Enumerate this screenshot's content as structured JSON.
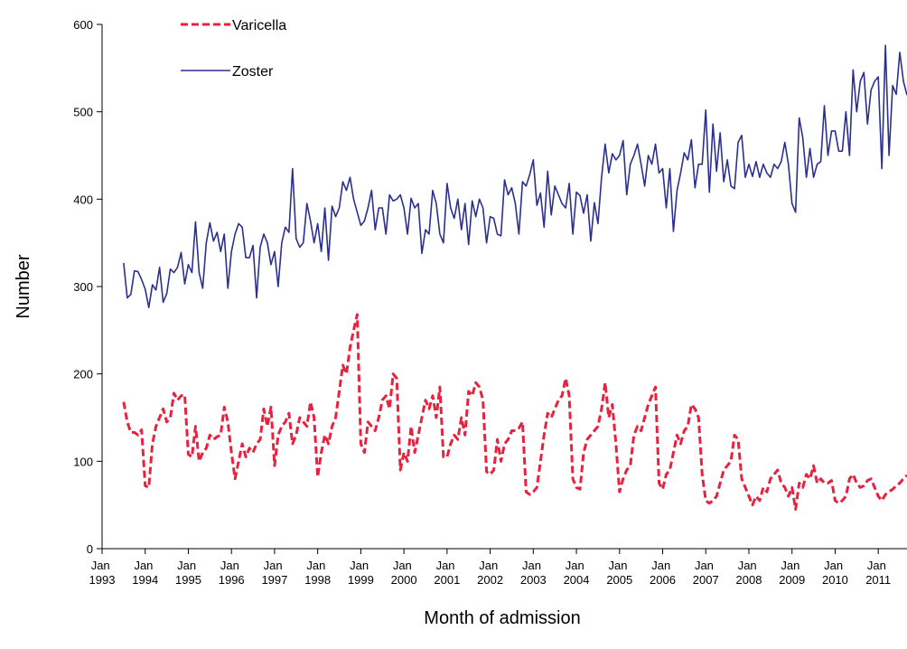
{
  "chart_data": {
    "type": "line",
    "xlabel": "Month of admission",
    "ylabel": "Number",
    "legend": "upper left",
    "x": [
      "1993-07",
      "1993-08",
      "1993-09",
      "1993-10",
      "1993-11",
      "1993-12",
      "1994-01",
      "1994-02",
      "1994-03",
      "1994-04",
      "1994-05",
      "1994-06",
      "1994-07",
      "1994-08",
      "1994-09",
      "1994-10",
      "1994-11",
      "1994-12",
      "1995-01",
      "1995-02",
      "1995-03",
      "1995-04",
      "1995-05",
      "1995-06",
      "1995-07",
      "1995-08",
      "1995-09",
      "1995-10",
      "1995-11",
      "1995-12",
      "1996-01",
      "1996-02",
      "1996-03",
      "1996-04",
      "1996-05",
      "1996-06",
      "1996-07",
      "1996-08",
      "1996-09",
      "1996-10",
      "1996-11",
      "1996-12",
      "1997-01",
      "1997-02",
      "1997-03",
      "1997-04",
      "1997-05",
      "1997-06",
      "1997-07",
      "1997-08",
      "1997-09",
      "1997-10",
      "1997-11",
      "1997-12",
      "1998-01",
      "1998-02",
      "1998-03",
      "1998-04",
      "1998-05",
      "1998-06",
      "1998-07",
      "1998-08",
      "1998-09",
      "1998-10",
      "1998-11",
      "1998-12",
      "1999-01",
      "1999-02",
      "1999-03",
      "1999-04",
      "1999-05",
      "1999-06",
      "1999-07",
      "1999-08",
      "1999-09",
      "1999-10",
      "1999-11",
      "1999-12",
      "2000-01",
      "2000-02",
      "2000-03",
      "2000-04",
      "2000-05",
      "2000-06",
      "2000-07",
      "2000-08",
      "2000-09",
      "2000-10",
      "2000-11",
      "2000-12",
      "2001-01",
      "2001-02",
      "2001-03",
      "2001-04",
      "2001-05",
      "2001-06",
      "2001-07",
      "2001-08",
      "2001-09",
      "2001-10",
      "2001-11",
      "2001-12",
      "2002-01",
      "2002-02",
      "2002-03",
      "2002-04",
      "2002-05",
      "2002-06",
      "2002-07",
      "2002-08",
      "2002-09",
      "2002-10",
      "2002-11",
      "2002-12",
      "2003-01",
      "2003-02",
      "2003-03",
      "2003-04",
      "2003-05",
      "2003-06",
      "2003-07",
      "2003-08",
      "2003-09",
      "2003-10",
      "2003-11",
      "2003-12",
      "2004-01",
      "2004-02",
      "2004-03",
      "2004-04",
      "2004-05",
      "2004-06",
      "2004-07",
      "2004-08",
      "2004-09",
      "2004-10",
      "2004-11",
      "2004-12",
      "2005-01",
      "2005-02",
      "2005-03",
      "2005-04",
      "2005-05",
      "2005-06",
      "2005-07",
      "2005-08",
      "2005-09",
      "2005-10",
      "2005-11",
      "2005-12",
      "2006-01",
      "2006-02",
      "2006-03",
      "2006-04",
      "2006-05",
      "2006-06",
      "2006-07",
      "2006-08",
      "2006-09",
      "2006-10",
      "2006-11",
      "2006-12",
      "2007-01",
      "2007-02",
      "2007-03",
      "2007-04",
      "2007-05",
      "2007-06",
      "2007-07",
      "2007-08",
      "2007-09",
      "2007-10",
      "2007-11",
      "2007-12",
      "2008-01",
      "2008-02",
      "2008-03",
      "2008-04",
      "2008-05",
      "2008-06",
      "2008-07",
      "2008-08",
      "2008-09",
      "2008-10",
      "2008-11",
      "2008-12",
      "2009-01",
      "2009-02",
      "2009-03",
      "2009-04",
      "2009-05",
      "2009-06",
      "2009-07",
      "2009-08",
      "2009-09",
      "2009-10",
      "2009-11",
      "2009-12",
      "2010-01",
      "2010-02",
      "2010-03",
      "2010-04",
      "2010-05",
      "2010-06",
      "2010-07",
      "2010-08",
      "2010-09",
      "2010-10",
      "2010-11",
      "2010-12",
      "2011-01",
      "2011-02",
      "2011-03",
      "2011-04",
      "2011-05",
      "2011-06",
      "2011-07",
      "2011-08",
      "2011-09"
    ],
    "xlim": [
      "1993-01",
      "2011-09"
    ],
    "xticks": [
      {
        "value": "1993-01",
        "label": "Jan 1993"
      },
      {
        "value": "1994-01",
        "label": "Jan 1994"
      },
      {
        "value": "1995-01",
        "label": "Jan 1995"
      },
      {
        "value": "1996-01",
        "label": "Jan 1996"
      },
      {
        "value": "1997-01",
        "label": "Jan 1997"
      },
      {
        "value": "1998-01",
        "label": "Jan 1998"
      },
      {
        "value": "1999-01",
        "label": "Jan 1999"
      },
      {
        "value": "2000-01",
        "label": "Jan 2000"
      },
      {
        "value": "2001-01",
        "label": "Jan 2001"
      },
      {
        "value": "2002-01",
        "label": "Jan 2002"
      },
      {
        "value": "2003-01",
        "label": "Jan 2003"
      },
      {
        "value": "2004-01",
        "label": "Jan 2004"
      },
      {
        "value": "2005-01",
        "label": "Jan 2005"
      },
      {
        "value": "2006-01",
        "label": "Jan 2006"
      },
      {
        "value": "2007-01",
        "label": "Jan 2007"
      },
      {
        "value": "2008-01",
        "label": "Jan 2008"
      },
      {
        "value": "2009-01",
        "label": "Jan 2009"
      },
      {
        "value": "2010-01",
        "label": "Jan 2010"
      },
      {
        "value": "2011-01",
        "label": "Jan 2011"
      }
    ],
    "ylim": [
      0,
      600
    ],
    "yticks": [
      0,
      100,
      200,
      300,
      400,
      500,
      600
    ],
    "series": [
      {
        "name": "Varicella",
        "color": "#e8213f",
        "dashed": true,
        "values": [
          168,
          145,
          133,
          133,
          130,
          136,
          72,
          70,
          120,
          140,
          150,
          160,
          145,
          150,
          178,
          170,
          175,
          176,
          108,
          105,
          140,
          100,
          110,
          115,
          130,
          125,
          128,
          130,
          162,
          145,
          110,
          80,
          100,
          120,
          105,
          115,
          110,
          120,
          125,
          160,
          140,
          162,
          95,
          130,
          140,
          145,
          155,
          120,
          130,
          150,
          145,
          140,
          168,
          150,
          82,
          110,
          130,
          120,
          140,
          150,
          180,
          210,
          200,
          230,
          250,
          268,
          120,
          110,
          145,
          140,
          135,
          150,
          170,
          175,
          160,
          200,
          195,
          90,
          110,
          100,
          140,
          110,
          130,
          150,
          170,
          160,
          175,
          150,
          185,
          105,
          105,
          120,
          130,
          125,
          150,
          130,
          180,
          175,
          190,
          185,
          170,
          88,
          85,
          90,
          125,
          100,
          120,
          125,
          135,
          135,
          138,
          145,
          65,
          62,
          65,
          70,
          100,
          130,
          155,
          150,
          160,
          170,
          175,
          195,
          175,
          80,
          70,
          68,
          110,
          125,
          130,
          135,
          140,
          160,
          190,
          150,
          165,
          120,
          65,
          80,
          90,
          95,
          130,
          140,
          135,
          150,
          165,
          175,
          185,
          75,
          68,
          85,
          90,
          110,
          130,
          120,
          135,
          140,
          165,
          160,
          150,
          85,
          55,
          52,
          55,
          60,
          75,
          90,
          95,
          100,
          130,
          125,
          80,
          70,
          60,
          50,
          60,
          55,
          70,
          65,
          80,
          85,
          90,
          75,
          70,
          60,
          70,
          45,
          75,
          70,
          85,
          80,
          95,
          75,
          80,
          75,
          75,
          78,
          55,
          52,
          55,
          60,
          80,
          85,
          75,
          70,
          72,
          78,
          80,
          70,
          60,
          55,
          62,
          65,
          68,
          72,
          75,
          80,
          84
        ]
      },
      {
        "name": "Zoster",
        "color": "#2b2f8f",
        "dashed": false,
        "values": [
          327,
          287,
          291,
          318,
          317,
          308,
          297,
          276,
          302,
          296,
          322,
          282,
          292,
          320,
          316,
          322,
          339,
          303,
          325,
          316,
          374,
          316,
          298,
          350,
          373,
          352,
          362,
          340,
          360,
          298,
          340,
          360,
          372,
          368,
          333,
          333,
          347,
          287,
          345,
          360,
          350,
          325,
          340,
          300,
          350,
          368,
          362,
          435,
          355,
          345,
          350,
          395,
          375,
          350,
          372,
          340,
          390,
          330,
          392,
          380,
          390,
          420,
          410,
          425,
          400,
          385,
          370,
          375,
          390,
          410,
          365,
          390,
          390,
          360,
          405,
          398,
          400,
          405,
          390,
          360,
          401,
          390,
          395,
          338,
          365,
          360,
          410,
          395,
          360,
          350,
          418,
          390,
          378,
          400,
          365,
          395,
          348,
          398,
          380,
          400,
          390,
          350,
          380,
          378,
          360,
          358,
          422,
          405,
          413,
          395,
          360,
          420,
          415,
          428,
          445,
          393,
          407,
          368,
          432,
          382,
          415,
          405,
          395,
          390,
          418,
          360,
          408,
          404,
          384,
          405,
          352,
          396,
          372,
          425,
          463,
          430,
          452,
          445,
          450,
          467,
          405,
          440,
          450,
          463,
          440,
          415,
          450,
          440,
          463,
          430,
          435,
          390,
          435,
          363,
          410,
          430,
          453,
          445,
          468,
          413,
          440,
          440,
          502,
          408,
          486,
          432,
          476,
          420,
          445,
          415,
          412,
          465,
          473,
          425,
          440,
          426,
          443,
          425,
          440,
          430,
          425,
          440,
          435,
          443,
          465,
          440,
          395,
          385,
          493,
          470,
          425,
          458,
          425,
          440,
          443,
          507,
          450,
          478,
          478,
          455,
          455,
          500,
          450,
          548,
          500,
          535,
          545,
          486,
          525,
          535,
          540,
          435,
          576,
          450,
          530,
          520,
          568,
          535,
          519
        ]
      }
    ]
  }
}
